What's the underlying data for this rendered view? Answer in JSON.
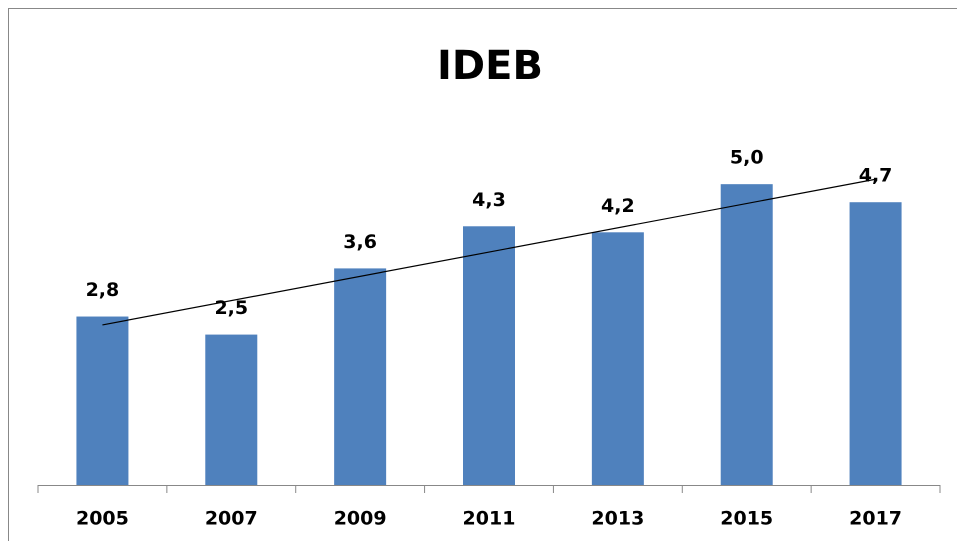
{
  "chart_data": {
    "type": "bar",
    "title": "IDEB",
    "categories": [
      "2005",
      "2007",
      "2009",
      "2011",
      "2013",
      "2015",
      "2017"
    ],
    "values": [
      2.8,
      2.5,
      3.6,
      4.3,
      4.2,
      5.0,
      4.7
    ],
    "value_labels": [
      "2,8",
      "2,5",
      "3,6",
      "4,3",
      "4,2",
      "5,0",
      "4,7"
    ],
    "color": "#4f81bd",
    "ylim": [
      0,
      6
    ],
    "trendline": "linear"
  }
}
